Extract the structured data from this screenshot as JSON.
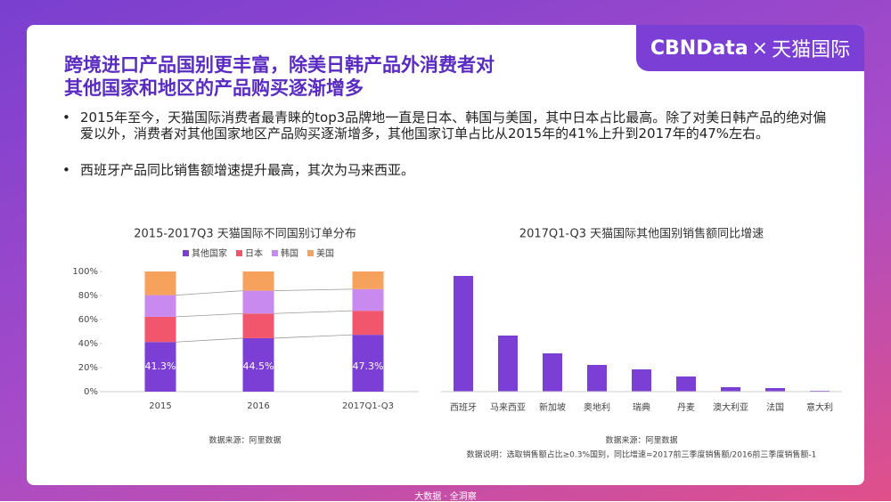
{
  "title_lines": [
    "跨境进口产品国别更丰富，除美日韩产品外消费者对",
    "其他国家和地区的产品购买逐渐增多"
  ],
  "bullets": [
    "2015年至今，天猫国际消费者最青睐的top3品牌地一直是日本、韩国与美国，其中日本占比最高。除了对美日韩产品的绝对偏爱以外，消费者对其他国家地区产品购买逐渐增多，其他国家订单占比从2015年的41%上升到2017年的47%左右。",
    "西班牙产品同比销售额增速提升最高，其次为马来西亚。"
  ],
  "logo": {
    "brand": "CBNData",
    "cross": "×",
    "partner": "天猫国际"
  },
  "footer": "大数据 · 全洞察",
  "chart_data": [
    {
      "type": "stacked_bar",
      "title": "2015-2017Q3 天猫国际不同国别订单分布",
      "categories": [
        "2015",
        "2016",
        "2017Q1-Q3"
      ],
      "series": [
        {
          "name": "其他国家",
          "color": "#7b3fd6",
          "values": [
            41.3,
            44.5,
            47.3
          ],
          "value_labels": [
            "41.3%",
            "44.5%",
            "47.3%"
          ]
        },
        {
          "name": "日本",
          "color": "#f2566c",
          "values": [
            21,
            20.5,
            20
          ]
        },
        {
          "name": "韩国",
          "color": "#c98af0",
          "values": [
            18,
            19,
            18
          ]
        },
        {
          "name": "美国",
          "color": "#f7a25c",
          "values": [
            19.7,
            16,
            14.7
          ]
        }
      ],
      "ylim": [
        0,
        100
      ],
      "yticks": [
        {
          "value": 0,
          "label": "0%"
        },
        {
          "value": 20,
          "label": "20%"
        },
        {
          "value": 40,
          "label": "40%"
        },
        {
          "value": 60,
          "label": "60%"
        },
        {
          "value": 80,
          "label": "80%"
        },
        {
          "value": 100,
          "label": "100%"
        }
      ],
      "legend": "top",
      "source": "数据来源：阿里数据"
    },
    {
      "type": "bar",
      "title": "2017Q1-Q3 天猫国际其他国别销售额同比增速",
      "categories": [
        "西班牙",
        "马来西亚",
        "新加坡",
        "奥地利",
        "瑞典",
        "丹麦",
        "澳大利亚",
        "法国",
        "意大利"
      ],
      "values": [
        130,
        63,
        43,
        30,
        25,
        17,
        5,
        4,
        1
      ],
      "color": "#7b3fd6",
      "ylim": [
        0,
        135
      ],
      "source": "数据来源：阿里数据",
      "note": "数据说明：选取销售额占比≥0.3%国别，同比增速=2017前三季度销售额/2016前三季度销售额-1"
    }
  ]
}
